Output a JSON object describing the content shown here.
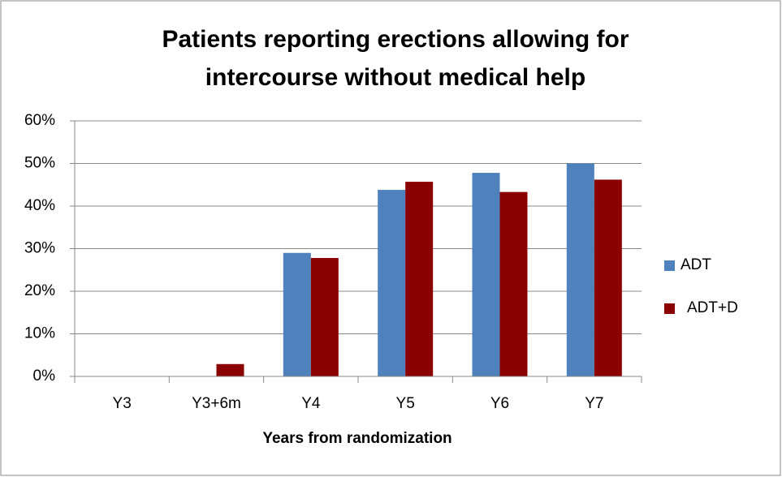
{
  "chart_data": {
    "type": "bar",
    "title": [
      "Patients reporting erections allowing for",
      "intercourse without medical help"
    ],
    "x_label": "Years from randomization",
    "categories": [
      "Y3",
      "Y3+6m",
      "Y4",
      "Y5",
      "Y6",
      "Y7"
    ],
    "series": [
      {
        "name": "ADT",
        "color": "#4f81bd",
        "values": [
          0,
          0,
          29,
          43.8,
          47.8,
          50
        ]
      },
      {
        "name": "ADT+D",
        "color": "#8b0000",
        "values": [
          0,
          2.9,
          27.8,
          45.7,
          43.3,
          46.2
        ]
      }
    ],
    "ylim": [
      0,
      60
    ],
    "yticks": [
      {
        "value": 0,
        "label": "0%"
      },
      {
        "value": 10,
        "label": "10%"
      },
      {
        "value": 20,
        "label": "20%"
      },
      {
        "value": 30,
        "label": "30%"
      },
      {
        "value": 40,
        "label": "40%"
      },
      {
        "value": 50,
        "label": "50%"
      },
      {
        "value": 60,
        "label": "60%"
      }
    ],
    "grid": true,
    "legend": "right"
  }
}
